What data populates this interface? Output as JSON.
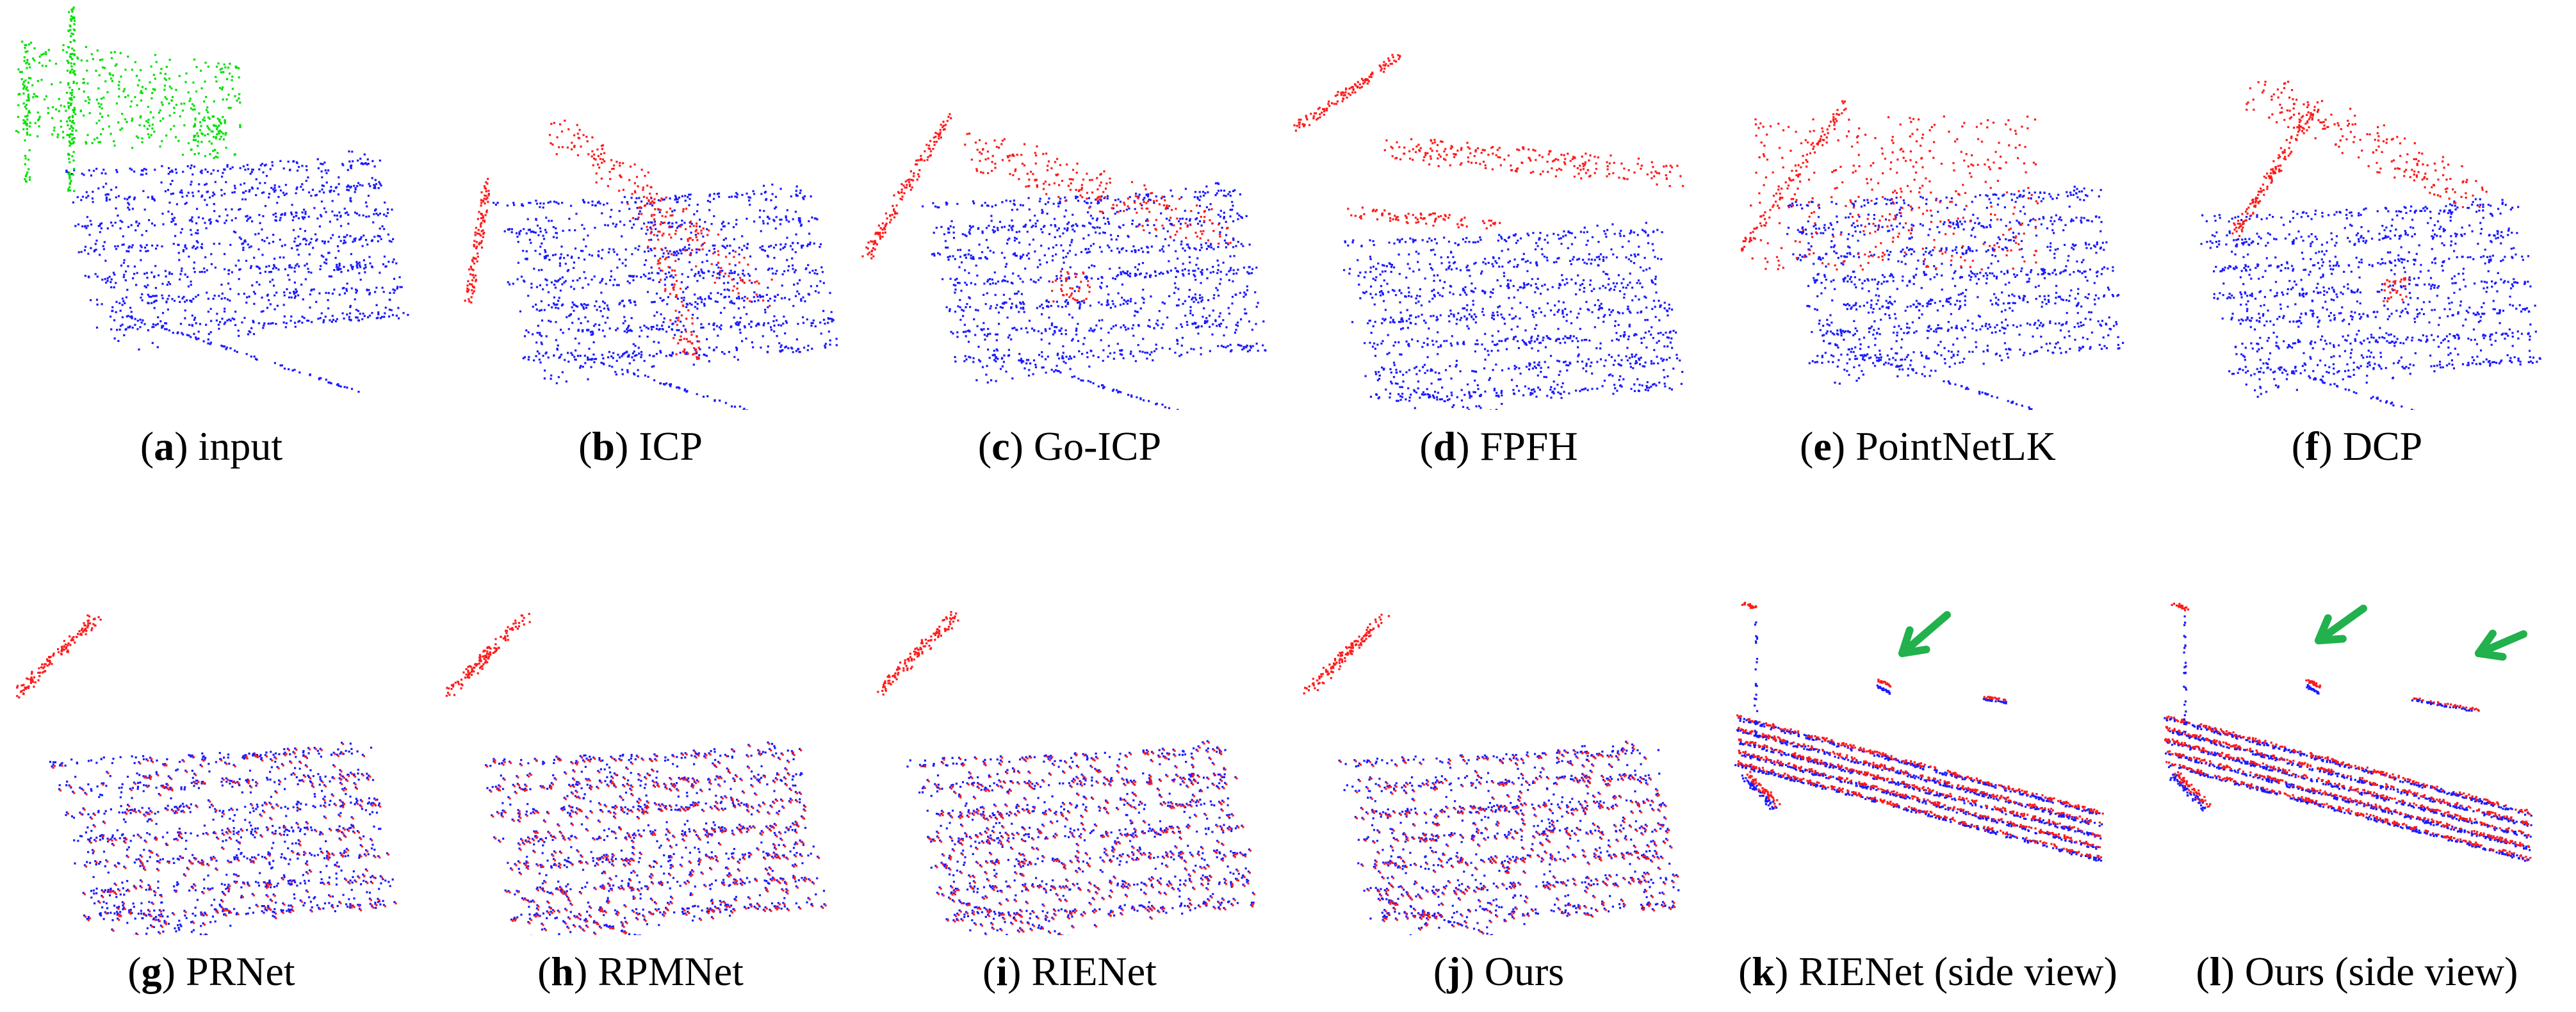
{
  "figure": {
    "panels": [
      {
        "letter": "a",
        "label": "input"
      },
      {
        "letter": "b",
        "label": "ICP"
      },
      {
        "letter": "c",
        "label": "Go-ICP"
      },
      {
        "letter": "d",
        "label": "FPFH"
      },
      {
        "letter": "e",
        "label": "PointNetLK"
      },
      {
        "letter": "f",
        "label": "DCP"
      },
      {
        "letter": "g",
        "label": "PRNet"
      },
      {
        "letter": "h",
        "label": "RPMNet"
      },
      {
        "letter": "i",
        "label": "RIENet"
      },
      {
        "letter": "j",
        "label": "Ours"
      },
      {
        "letter": "k",
        "label": "RIENet (side view)"
      },
      {
        "letter": "l",
        "label": "Ours (side view)"
      }
    ],
    "colors": {
      "source": "#00e000",
      "target": "#1a1aff",
      "transformed": "#ff1a1a",
      "arrow": "#22b14c"
    }
  }
}
